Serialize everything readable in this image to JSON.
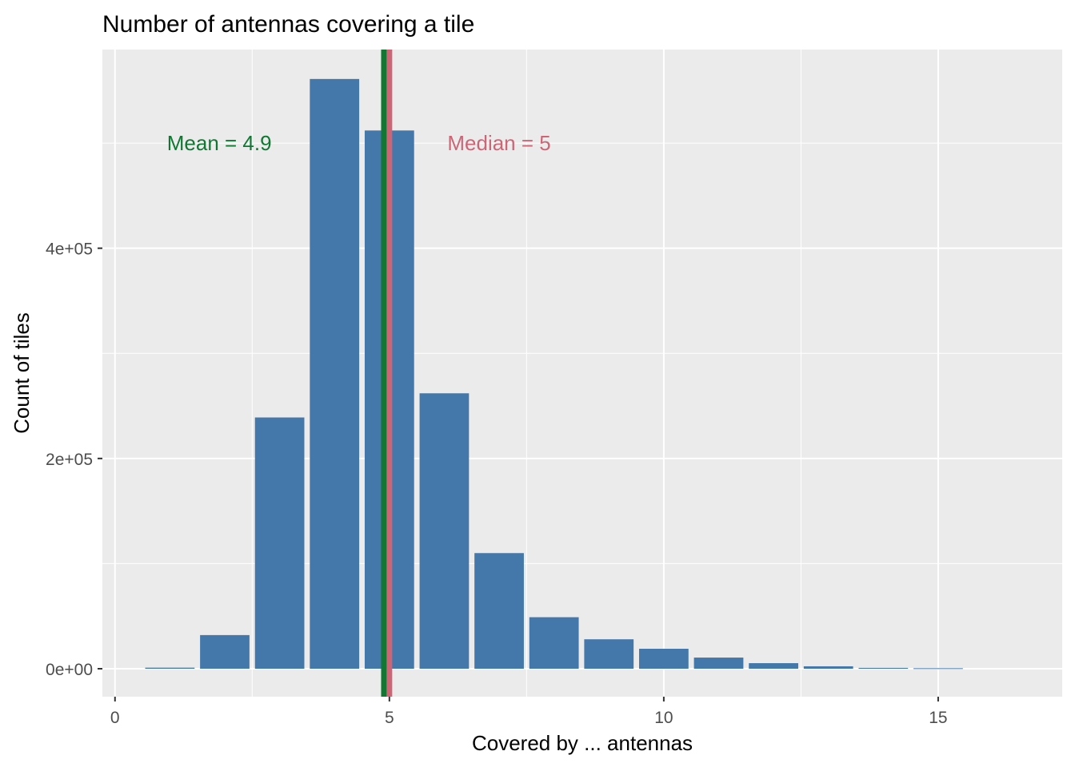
{
  "chart_data": {
    "type": "bar",
    "title": "Number of antennas covering a tile",
    "xlabel": "Covered by ... antennas",
    "ylabel": "Count of tiles",
    "x": [
      1,
      2,
      3,
      4,
      5,
      6,
      7,
      8,
      9,
      10,
      11,
      12,
      13,
      14,
      15
    ],
    "values": [
      1000,
      32000,
      239000,
      561000,
      512000,
      262000,
      110000,
      49000,
      28000,
      19000,
      10600,
      5300,
      2300,
      800,
      500
    ],
    "xlim": [
      -0.23,
      17.26
    ],
    "ylim": [
      -26600,
      589000
    ],
    "x_ticks": [
      0,
      5,
      10,
      15
    ],
    "x_tick_labels": [
      "0",
      "5",
      "10",
      "15"
    ],
    "y_ticks": [
      0,
      200000,
      400000
    ],
    "y_tick_labels": [
      "0e+00",
      "2e+05",
      "4e+05"
    ],
    "grid": true,
    "bar_color": "#4477AA",
    "panel_background": "#EBEBEB",
    "reference_lines": [
      {
        "label": "Mean = 4.9",
        "value": 4.9,
        "color": "#117733",
        "label_x": 1.9,
        "label_y": 500000
      },
      {
        "label": "Median = 5",
        "value": 5,
        "color": "#CC6677",
        "label_x": 7.0,
        "label_y": 500000
      }
    ]
  }
}
